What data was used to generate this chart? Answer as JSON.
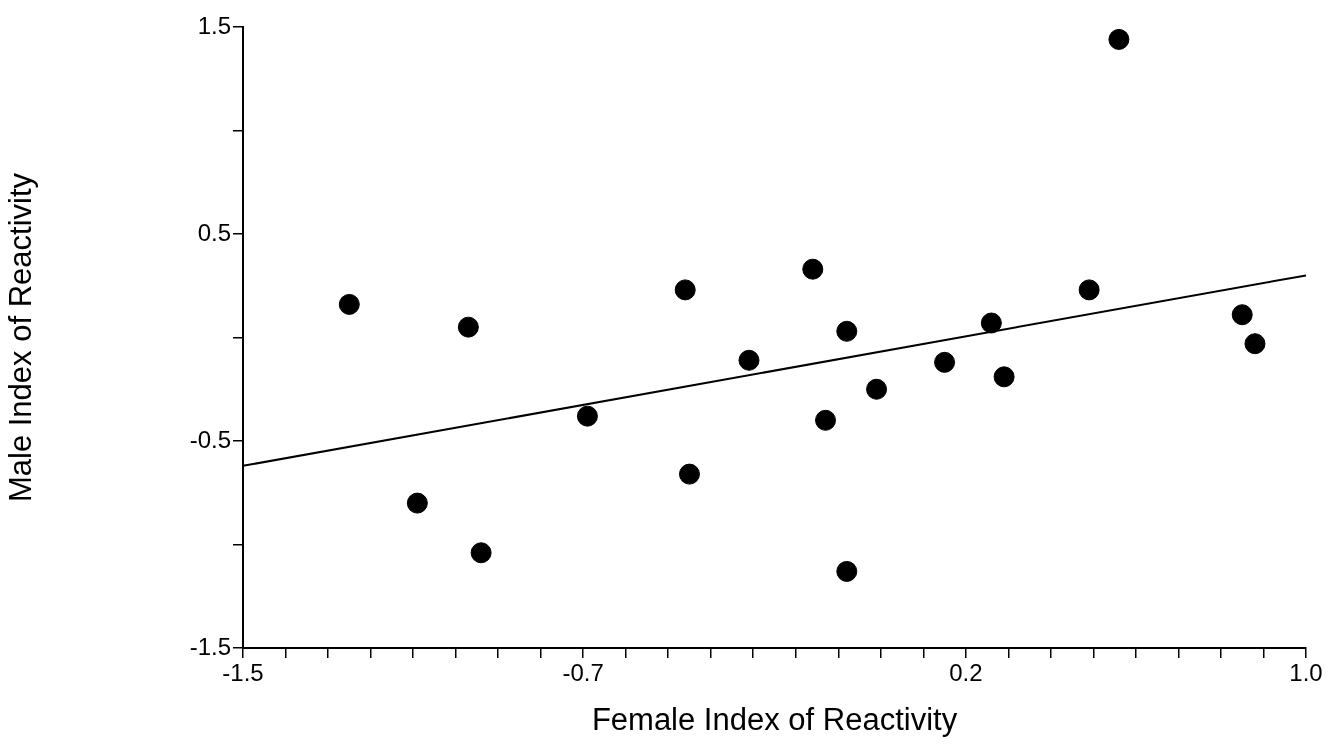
{
  "chart_data": {
    "type": "scatter",
    "xlabel": "Female Index of Reactivity",
    "ylabel": "Male Index of Reactivity",
    "xlim": [
      -1.5,
      1.0
    ],
    "ylim": [
      -1.5,
      1.5
    ],
    "xticks": [
      -1.5,
      {
        "value": -1.4,
        "label": null
      },
      {
        "value": -1.3,
        "label": null
      },
      {
        "value": -1.2,
        "label": null
      },
      {
        "value": -1.1,
        "label": null
      },
      {
        "value": -1.0,
        "label": null
      },
      {
        "value": -0.9,
        "label": null
      },
      {
        "value": -0.8,
        "label": null
      },
      -0.7,
      {
        "value": -0.6,
        "label": null
      },
      {
        "value": -0.5,
        "label": null
      },
      {
        "value": -0.4,
        "label": null
      },
      {
        "value": -0.3,
        "label": null
      },
      {
        "value": -0.2,
        "label": null
      },
      {
        "value": -0.1,
        "label": null
      },
      {
        "value": 0.0,
        "label": null
      },
      {
        "value": 0.1,
        "label": null
      },
      0.2,
      {
        "value": 0.3,
        "label": null
      },
      {
        "value": 0.4,
        "label": null
      },
      {
        "value": 0.5,
        "label": null
      },
      {
        "value": 0.6,
        "label": null
      },
      {
        "value": 0.7,
        "label": null
      },
      {
        "value": 0.8,
        "label": null
      },
      {
        "value": 0.9,
        "label": null
      },
      {
        "value": 1.0,
        "label": "1.0"
      }
    ],
    "yticks": [
      {
        "value": -1.5,
        "label": "-1.5"
      },
      {
        "value": -1.0,
        "label": null
      },
      -0.5,
      {
        "value": 0.0,
        "label": null
      },
      0.5,
      {
        "value": 1.0,
        "label": null
      },
      1.5
    ],
    "grid": false,
    "legend": false,
    "marker": "circle",
    "series": [
      {
        "type": "scatter",
        "color": "#000000",
        "x": [
          -1.25,
          -0.97,
          -1.09,
          -0.94,
          -0.69,
          -0.46,
          -0.45,
          -0.31,
          -0.16,
          -0.08,
          -0.13,
          -0.08,
          -0.01,
          0.15,
          0.26,
          0.29,
          0.49,
          0.56,
          0.85,
          0.88
        ],
        "values": [
          0.16,
          0.05,
          -0.8,
          -1.04,
          -0.38,
          0.23,
          -0.66,
          -0.11,
          0.33,
          0.03,
          -0.4,
          -1.13,
          -0.25,
          -0.12,
          0.07,
          -0.19,
          0.23,
          1.44,
          0.11,
          -0.03
        ]
      },
      {
        "type": "line",
        "color": "#000000",
        "marker": "none",
        "line_style": "solid",
        "x": [
          -1.5,
          1.0
        ],
        "values": [
          -0.62,
          0.3
        ]
      }
    ]
  }
}
